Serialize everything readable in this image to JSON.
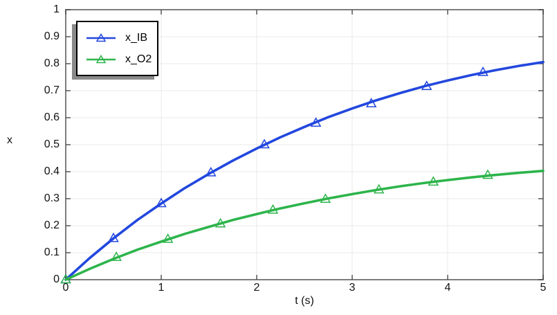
{
  "chart_data": {
    "type": "line",
    "title": "",
    "xlabel": "t (s)",
    "ylabel": "x",
    "xlim": [
      0,
      5
    ],
    "ylim": [
      0,
      1
    ],
    "xticks": [
      0,
      1,
      2,
      3,
      4,
      5
    ],
    "yticks": [
      0,
      0.1,
      0.2,
      0.3,
      0.4,
      0.5,
      0.6,
      0.7,
      0.8,
      0.9,
      1
    ],
    "grid": true,
    "legend_position": "top-left",
    "x": [
      0,
      0.25,
      0.5,
      0.75,
      1,
      1.25,
      1.5,
      1.75,
      2,
      2.25,
      2.5,
      2.75,
      3,
      3.25,
      3.5,
      3.75,
      4,
      4.25,
      4.5,
      4.75,
      5
    ],
    "series": [
      {
        "name": "x_IB",
        "color": "#2247de",
        "marker": "triangle-up",
        "values": [
          0,
          0.08,
          0.153,
          0.221,
          0.282,
          0.34,
          0.392,
          0.441,
          0.486,
          0.528,
          0.566,
          0.602,
          0.634,
          0.664,
          0.691,
          0.716,
          0.738,
          0.758,
          0.776,
          0.792,
          0.806
        ],
        "marker_points": [
          [
            0,
            0
          ],
          [
            0.5,
            0.153
          ],
          [
            1.0,
            0.282
          ],
          [
            1.52,
            0.396
          ],
          [
            2.08,
            0.5
          ],
          [
            2.62,
            0.58
          ],
          [
            3.2,
            0.652
          ],
          [
            3.78,
            0.716
          ],
          [
            4.37,
            0.768
          ]
        ]
      },
      {
        "name": "x_O2",
        "color": "#2db44b",
        "marker": "triangle-up",
        "values": [
          0,
          0.04,
          0.077,
          0.111,
          0.141,
          0.17,
          0.196,
          0.221,
          0.243,
          0.264,
          0.283,
          0.301,
          0.317,
          0.332,
          0.346,
          0.358,
          0.369,
          0.379,
          0.388,
          0.396,
          0.403
        ],
        "marker_points": [
          [
            0,
            0
          ],
          [
            0.53,
            0.083
          ],
          [
            1.07,
            0.15
          ],
          [
            1.62,
            0.207
          ],
          [
            2.17,
            0.258
          ],
          [
            2.72,
            0.298
          ],
          [
            3.28,
            0.333
          ],
          [
            3.85,
            0.362
          ],
          [
            4.42,
            0.387
          ]
        ]
      }
    ]
  },
  "style": {
    "frame_color": "#7d7d7d",
    "tick_color": "#4a4a4a",
    "grid_color": "#e9e9e9",
    "text_color": "#111111",
    "legend_shadow": "#8a8a8a",
    "background": "#ffffff"
  }
}
